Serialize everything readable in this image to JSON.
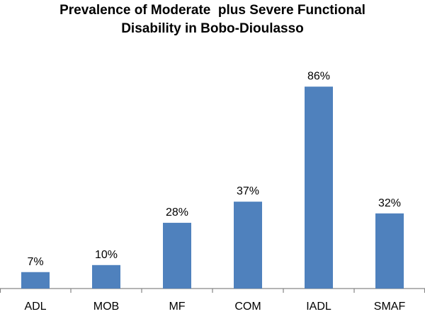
{
  "chart_data": {
    "type": "bar",
    "title_lines": [
      "Prevalence of Moderate  plus Severe Functional",
      "Disability in Bobo-Dioulasso"
    ],
    "categories": [
      "ADL",
      "MOB",
      "MF",
      "COM",
      "IADL",
      "SMAF"
    ],
    "values": [
      7,
      10,
      28,
      37,
      86,
      32
    ],
    "value_labels": [
      "7%",
      "10%",
      "28%",
      "37%",
      "86%",
      "32%"
    ],
    "bar_color": "#4F81BD",
    "axis_color": "#868686",
    "ylim": [
      0,
      100
    ],
    "grid": false,
    "legend": "none"
  }
}
